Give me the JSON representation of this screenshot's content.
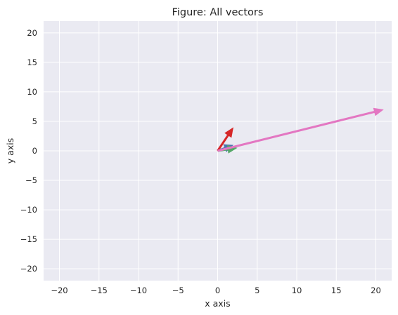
{
  "chart_data": {
    "type": "quiver",
    "title": "Figure: All vectors",
    "xlabel": "x axis",
    "ylabel": "y axis",
    "xlim": [
      -22,
      22
    ],
    "ylim": [
      -22,
      22
    ],
    "xticks": [
      -20,
      -15,
      -10,
      -5,
      0,
      5,
      10,
      15,
      20
    ],
    "yticks": [
      -20,
      -15,
      -10,
      -5,
      0,
      5,
      10,
      15,
      20
    ],
    "grid": true,
    "background": "#eaeaf2",
    "vectors": [
      {
        "x0": 0,
        "y0": 0,
        "dx": 2,
        "dy": 1,
        "color": "#4c72b0"
      },
      {
        "x0": 0,
        "y0": 0,
        "dx": 2.5,
        "dy": 0.5,
        "color": "#55a868"
      },
      {
        "x0": 0,
        "y0": 0,
        "dx": 2,
        "dy": 4,
        "color": "#d62728"
      },
      {
        "x0": 0,
        "y0": 0,
        "dx": 21,
        "dy": 7,
        "color": "#e377c2"
      }
    ]
  }
}
